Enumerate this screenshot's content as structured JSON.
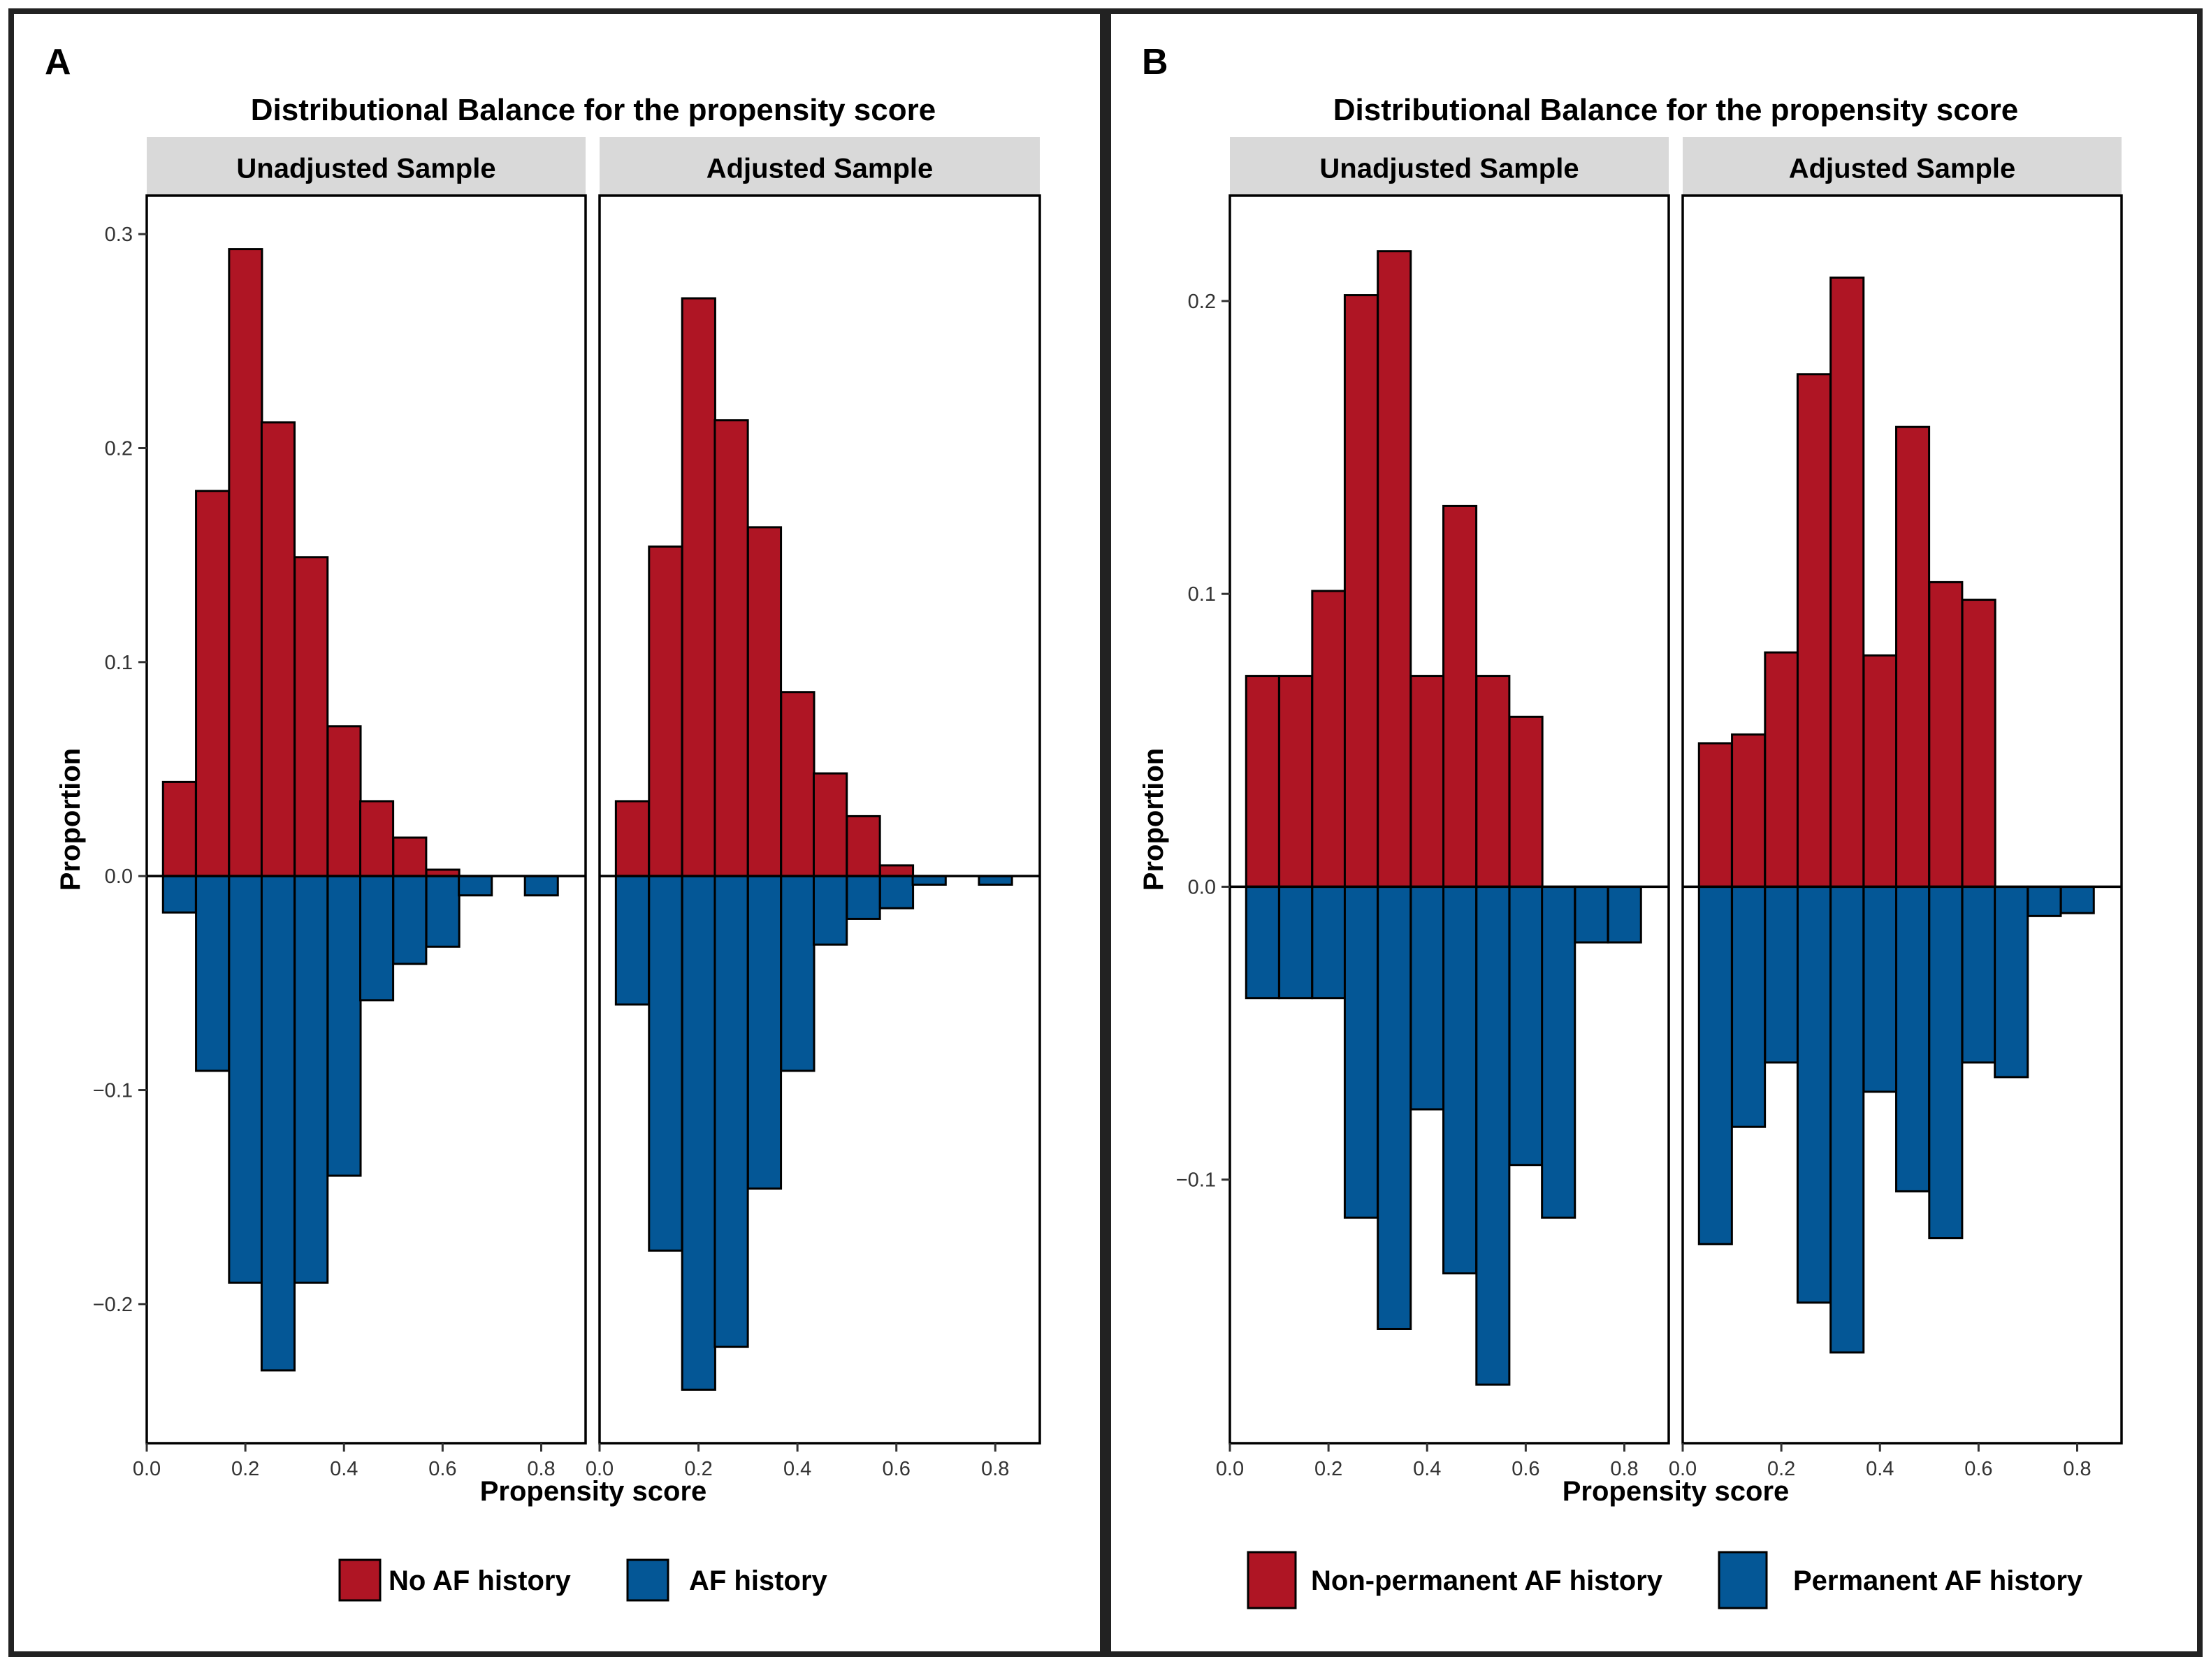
{
  "colors": {
    "red": "#AF1524",
    "blue": "#045796",
    "strip": "#d9d9d9",
    "frame": "#222222"
  },
  "chart_data": [
    {
      "type": "bar",
      "panel_label": "A",
      "title": "Distributional Balance for the propensity score",
      "xlabel": "Propensity score",
      "ylabel": "Proportion",
      "xlim": [
        0.0,
        0.89
      ],
      "ylim": [
        -0.265,
        0.318
      ],
      "xticks": [
        0.0,
        0.2,
        0.4,
        0.6,
        0.8
      ],
      "xtick_labels": [
        "0.0",
        "0.2",
        "0.4",
        "0.6",
        "0.8"
      ],
      "yticks": [
        0.3,
        0.2,
        0.1,
        0.0,
        -0.1,
        -0.2
      ],
      "ytick_labels": [
        "0.3",
        "0.2",
        "0.1",
        "0.0",
        "−0.1",
        "−0.2"
      ],
      "bin_width": 0.0667,
      "legend": [
        {
          "label": "No AF history",
          "color": "red"
        },
        {
          "label": "AF history",
          "color": "blue"
        }
      ],
      "facets": [
        {
          "label": "Unadjusted Sample",
          "bins_start": [
            0.033,
            0.1,
            0.167,
            0.233,
            0.3,
            0.367,
            0.433,
            0.5,
            0.567,
            0.633,
            0.7,
            0.767
          ],
          "series": [
            {
              "name": "No AF history",
              "values": [
                0.044,
                0.18,
                0.293,
                0.212,
                0.149,
                0.07,
                0.035,
                0.018,
                0.003,
                0.0,
                0.0,
                0.0
              ]
            },
            {
              "name": "AF history",
              "values": [
                -0.017,
                -0.091,
                -0.19,
                -0.231,
                -0.19,
                -0.14,
                -0.058,
                -0.041,
                -0.033,
                -0.009,
                0.0,
                -0.009
              ]
            }
          ]
        },
        {
          "label": "Adjusted Sample",
          "bins_start": [
            0.033,
            0.1,
            0.167,
            0.233,
            0.3,
            0.367,
            0.433,
            0.5,
            0.567,
            0.633,
            0.7,
            0.767
          ],
          "series": [
            {
              "name": "No AF history",
              "values": [
                0.035,
                0.154,
                0.27,
                0.213,
                0.163,
                0.086,
                0.048,
                0.028,
                0.005,
                0.0,
                0.0,
                0.0
              ]
            },
            {
              "name": "AF history",
              "values": [
                -0.06,
                -0.175,
                -0.24,
                -0.22,
                -0.146,
                -0.091,
                -0.032,
                -0.02,
                -0.015,
                -0.004,
                0.0,
                -0.004
              ]
            }
          ]
        }
      ]
    },
    {
      "type": "bar",
      "panel_label": "B",
      "title": "Distributional Balance for the propensity score",
      "xlabel": "Propensity score",
      "ylabel": "Proportion",
      "xlim": [
        0.0,
        0.89
      ],
      "ylim": [
        -0.19,
        0.236
      ],
      "xticks": [
        0.0,
        0.2,
        0.4,
        0.6,
        0.8
      ],
      "xtick_labels": [
        "0.0",
        "0.2",
        "0.4",
        "0.6",
        "0.8"
      ],
      "yticks": [
        0.2,
        0.1,
        0.0,
        -0.1
      ],
      "ytick_labels": [
        "0.2",
        "0.1",
        "0.0",
        "−0.1"
      ],
      "bin_width": 0.0667,
      "legend": [
        {
          "label": "Non-permanent AF history",
          "color": "red"
        },
        {
          "label": "Permanent AF history",
          "color": "blue"
        }
      ],
      "facets": [
        {
          "label": "Unadjusted Sample",
          "bins_start": [
            0.033,
            0.1,
            0.167,
            0.233,
            0.3,
            0.367,
            0.433,
            0.5,
            0.567,
            0.633,
            0.7,
            0.767
          ],
          "series": [
            {
              "name": "Non-permanent AF history",
              "values": [
                0.072,
                0.072,
                0.101,
                0.202,
                0.217,
                0.072,
                0.13,
                0.072,
                0.058,
                0.0,
                0.0,
                0.0
              ]
            },
            {
              "name": "Permanent AF history",
              "values": [
                -0.038,
                -0.038,
                -0.038,
                -0.113,
                -0.151,
                -0.076,
                -0.132,
                -0.17,
                -0.095,
                -0.113,
                -0.019,
                -0.019
              ]
            }
          ]
        },
        {
          "label": "Adjusted Sample",
          "bins_start": [
            0.033,
            0.1,
            0.167,
            0.233,
            0.3,
            0.367,
            0.433,
            0.5,
            0.567,
            0.633,
            0.7,
            0.767
          ],
          "series": [
            {
              "name": "Non-permanent AF history",
              "values": [
                0.049,
                0.052,
                0.08,
                0.175,
                0.208,
                0.079,
                0.157,
                0.104,
                0.098,
                0.0,
                0.0,
                0.0
              ]
            },
            {
              "name": "Permanent AF history",
              "values": [
                -0.122,
                -0.082,
                -0.06,
                -0.142,
                -0.159,
                -0.07,
                -0.104,
                -0.12,
                -0.06,
                -0.065,
                -0.01,
                -0.009
              ]
            }
          ]
        }
      ]
    }
  ]
}
